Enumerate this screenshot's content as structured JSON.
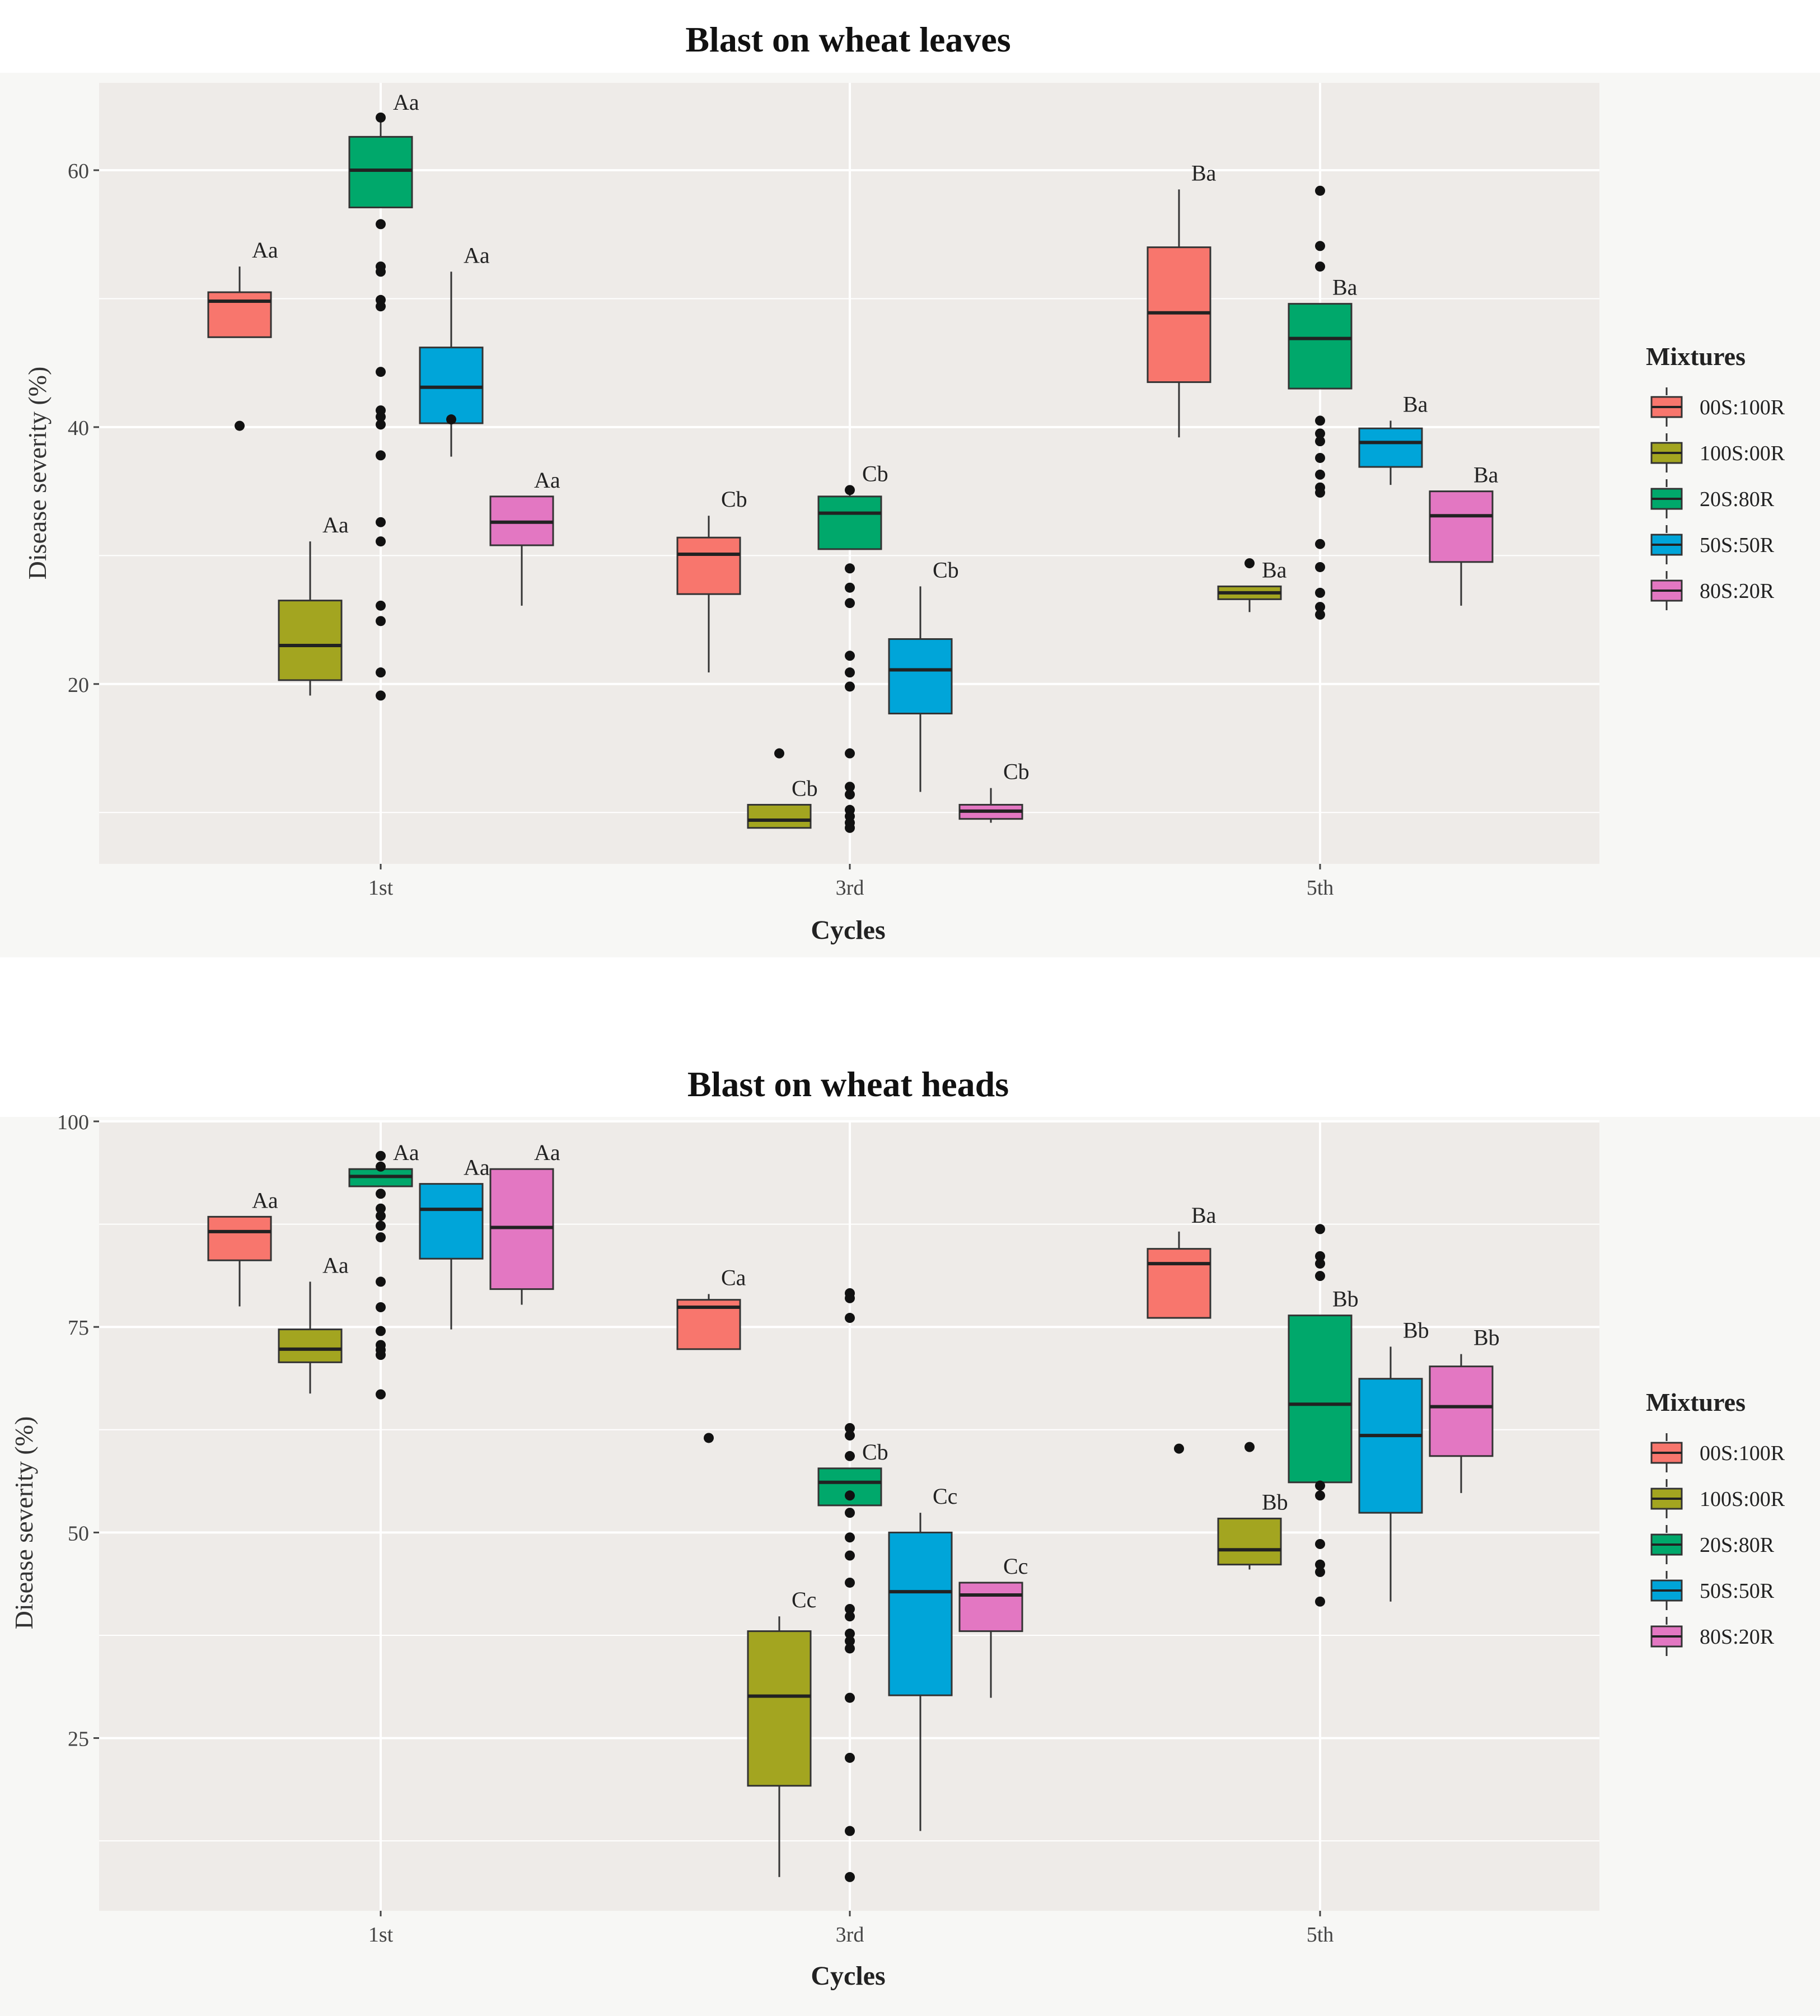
{
  "figure": {
    "panels": [
      "leaves",
      "heads"
    ]
  },
  "legend": {
    "title": "Mixtures",
    "entries": [
      "00S:100R",
      "100S:00R",
      "20S:80R",
      "50S:50R",
      "80S:20R"
    ],
    "colors": [
      "#F8766D",
      "#A3A520",
      "#00A86B",
      "#00A5D9",
      "#E377C2"
    ]
  },
  "chart_data": [
    {
      "type": "box",
      "title": "Blast on wheat leaves",
      "xlabel": "Cycles",
      "ylabel": "Disease severity (%)",
      "categories": [
        "1st",
        "3rd",
        "5th"
      ],
      "ylim": [
        6,
        66.8
      ],
      "yticks": [
        20,
        40,
        60
      ],
      "grid": true,
      "legend_position": "right",
      "groups": [
        {
          "category": "1st",
          "series": "00S:100R",
          "q1": 47,
          "median": 49.8,
          "q3": 50.5,
          "whisker_low": 47,
          "whisker_high": 52.5,
          "outliers": [
            40.1
          ],
          "label": "Aa"
        },
        {
          "category": "1st",
          "series": "100S:00R",
          "q1": 20.3,
          "median": 23,
          "q3": 26.5,
          "whisker_low": 19.1,
          "whisker_high": 31.1,
          "outliers": [],
          "label": "Aa"
        },
        {
          "category": "1st",
          "series": "20S:80R",
          "q1": 57.1,
          "median": 60,
          "q3": 62.6,
          "whisker_low": 57.1,
          "whisker_high": 64,
          "outliers": [
            64.1,
            55.8,
            52.5,
            52.1,
            49.9,
            49.4,
            44.3,
            41.3,
            40.8,
            40.2,
            37.8,
            32.6,
            31.1,
            26.1,
            24.9,
            20.9,
            19.1
          ],
          "label": "Aa"
        },
        {
          "category": "1st",
          "series": "50S:50R",
          "q1": 40.3,
          "median": 43.1,
          "q3": 46.2,
          "whisker_low": 37.7,
          "whisker_high": 52.1,
          "outliers": [
            40.6
          ],
          "label": "Aa"
        },
        {
          "category": "1st",
          "series": "80S:20R",
          "q1": 30.8,
          "median": 32.6,
          "q3": 34.6,
          "whisker_low": 26.1,
          "whisker_high": 34.6,
          "outliers": [],
          "label": "Aa"
        },
        {
          "category": "3rd",
          "series": "00S:100R",
          "q1": 27,
          "median": 30.1,
          "q3": 31.4,
          "whisker_low": 20.9,
          "whisker_high": 33.1,
          "outliers": [],
          "label": "Cb"
        },
        {
          "category": "3rd",
          "series": "100S:00R",
          "q1": 8.8,
          "median": 9.4,
          "q3": 10.6,
          "whisker_low": 8.8,
          "whisker_high": 10.6,
          "outliers": [
            14.6
          ],
          "label": "Cb"
        },
        {
          "category": "3rd",
          "series": "20S:80R",
          "q1": 30.5,
          "median": 33.3,
          "q3": 34.6,
          "whisker_low": 30.5,
          "whisker_high": 35.1,
          "outliers": [
            35.1,
            29,
            27.5,
            26.3,
            22.2,
            20.9,
            19.8,
            14.6,
            12,
            11.4,
            10.2,
            9.7,
            9.2,
            8.8
          ],
          "label": "Cb"
        },
        {
          "category": "3rd",
          "series": "50S:50R",
          "q1": 17.7,
          "median": 21.1,
          "q3": 23.5,
          "whisker_low": 11.6,
          "whisker_high": 27.6,
          "outliers": [],
          "label": "Cb"
        },
        {
          "category": "3rd",
          "series": "80S:20R",
          "q1": 9.5,
          "median": 10.1,
          "q3": 10.6,
          "whisker_low": 9.2,
          "whisker_high": 11.9,
          "outliers": [],
          "label": "Cb"
        },
        {
          "category": "5th",
          "series": "00S:100R",
          "q1": 43.5,
          "median": 48.9,
          "q3": 54,
          "whisker_low": 39.2,
          "whisker_high": 58.5,
          "outliers": [],
          "label": "Ba"
        },
        {
          "category": "5th",
          "series": "100S:00R",
          "q1": 26.6,
          "median": 27.1,
          "q3": 27.6,
          "whisker_low": 25.6,
          "whisker_high": 27.6,
          "outliers": [
            29.4
          ],
          "label": "Ba"
        },
        {
          "category": "5th",
          "series": "20S:80R",
          "q1": 43,
          "median": 46.9,
          "q3": 49.6,
          "whisker_low": 43,
          "whisker_high": 49.6,
          "outliers": [
            58.4,
            54.1,
            52.5,
            40.5,
            39.5,
            38.9,
            37.6,
            36.3,
            35.3,
            34.9,
            30.9,
            29.1,
            27.1,
            26,
            25.4
          ],
          "label": "Ba"
        },
        {
          "category": "5th",
          "series": "50S:50R",
          "q1": 36.9,
          "median": 38.8,
          "q3": 39.9,
          "whisker_low": 35.5,
          "whisker_high": 40.5,
          "outliers": [],
          "label": "Ba"
        },
        {
          "category": "5th",
          "series": "80S:20R",
          "q1": 29.5,
          "median": 33.1,
          "q3": 35,
          "whisker_low": 26.1,
          "whisker_high": 35,
          "outliers": [],
          "label": "Ba"
        }
      ]
    },
    {
      "type": "box",
      "title": "Blast on wheat heads",
      "xlabel": "Cycles",
      "ylabel": "Disease severity (%)",
      "categories": [
        "1st",
        "3rd",
        "5th"
      ],
      "ylim": [
        4,
        100
      ],
      "yticks": [
        25,
        50,
        75,
        100
      ],
      "grid": true,
      "legend_position": "right",
      "groups": [
        {
          "category": "1st",
          "series": "00S:100R",
          "q1": 83.1,
          "median": 86.6,
          "q3": 88.4,
          "whisker_low": 77.5,
          "whisker_high": 88.4,
          "outliers": [],
          "label": "Aa"
        },
        {
          "category": "1st",
          "series": "100S:00R",
          "q1": 70.7,
          "median": 72.3,
          "q3": 74.7,
          "whisker_low": 66.9,
          "whisker_high": 80.5,
          "outliers": [],
          "label": "Aa"
        },
        {
          "category": "1st",
          "series": "20S:80R",
          "q1": 92.1,
          "median": 93.3,
          "q3": 94.2,
          "whisker_low": 92.1,
          "whisker_high": 94.2,
          "outliers": [
            95.8,
            94.5,
            91.2,
            89.4,
            88.5,
            87.3,
            85.9,
            80.5,
            77.4,
            74.5,
            72.8,
            72.2,
            71.6,
            66.8
          ],
          "label": "Aa"
        },
        {
          "category": "1st",
          "series": "50S:50R",
          "q1": 83.3,
          "median": 89.3,
          "q3": 92.4,
          "whisker_low": 74.7,
          "whisker_high": 92.4,
          "outliers": [],
          "label": "Aa"
        },
        {
          "category": "1st",
          "series": "80S:20R",
          "q1": 79.6,
          "median": 87.1,
          "q3": 94.2,
          "whisker_low": 77.7,
          "whisker_high": 94.2,
          "outliers": [],
          "label": "Aa"
        },
        {
          "category": "3rd",
          "series": "00S:100R",
          "q1": 72.3,
          "median": 77.4,
          "q3": 78.3,
          "whisker_low": 72.3,
          "whisker_high": 79,
          "outliers": [
            61.5
          ],
          "label": "Ca"
        },
        {
          "category": "3rd",
          "series": "100S:00R",
          "q1": 19.2,
          "median": 30.1,
          "q3": 38,
          "whisker_low": 8.1,
          "whisker_high": 39.8,
          "outliers": [],
          "label": "Cc"
        },
        {
          "category": "3rd",
          "series": "20S:80R",
          "q1": 53.3,
          "median": 56.1,
          "q3": 57.8,
          "whisker_low": 53.3,
          "whisker_high": 57.8,
          "outliers": [
            79.1,
            78.5,
            76.1,
            62.7,
            61.8,
            59.3,
            54.5,
            52.4,
            49.4,
            47.2,
            43.9,
            40.7,
            39.8,
            37.7,
            36.8,
            35.9,
            29.9,
            22.6,
            13.7,
            8.1
          ],
          "label": "Cb"
        },
        {
          "category": "3rd",
          "series": "50S:50R",
          "q1": 30.2,
          "median": 42.8,
          "q3": 50,
          "whisker_low": 13.7,
          "whisker_high": 52.4,
          "outliers": [],
          "label": "Cc"
        },
        {
          "category": "3rd",
          "series": "80S:20R",
          "q1": 38,
          "median": 42.4,
          "q3": 43.9,
          "whisker_low": 29.9,
          "whisker_high": 43.9,
          "outliers": [],
          "label": "Cc"
        },
        {
          "category": "5th",
          "series": "00S:100R",
          "q1": 76.1,
          "median": 82.7,
          "q3": 84.5,
          "whisker_low": 76.1,
          "whisker_high": 86.6,
          "outliers": [
            60.2
          ],
          "label": "Ba"
        },
        {
          "category": "5th",
          "series": "100S:00R",
          "q1": 46.1,
          "median": 47.9,
          "q3": 51.7,
          "whisker_low": 45.5,
          "whisker_high": 51.7,
          "outliers": [
            60.4
          ],
          "label": "Bb"
        },
        {
          "category": "5th",
          "series": "20S:80R",
          "q1": 56.1,
          "median": 65.6,
          "q3": 76.4,
          "whisker_low": 56.1,
          "whisker_high": 76.4,
          "outliers": [
            86.9,
            83.6,
            82.7,
            81.2,
            55.7,
            54.5,
            48.6,
            46.1,
            45.2,
            41.6
          ],
          "label": "Bb"
        },
        {
          "category": "5th",
          "series": "50S:50R",
          "q1": 52.4,
          "median": 61.8,
          "q3": 68.7,
          "whisker_low": 41.6,
          "whisker_high": 72.6,
          "outliers": [],
          "label": "Bb"
        },
        {
          "category": "5th",
          "series": "80S:20R",
          "q1": 59.3,
          "median": 65.3,
          "q3": 70.2,
          "whisker_low": 54.8,
          "whisker_high": 71.7,
          "outliers": [],
          "label": "Bb"
        }
      ]
    }
  ]
}
